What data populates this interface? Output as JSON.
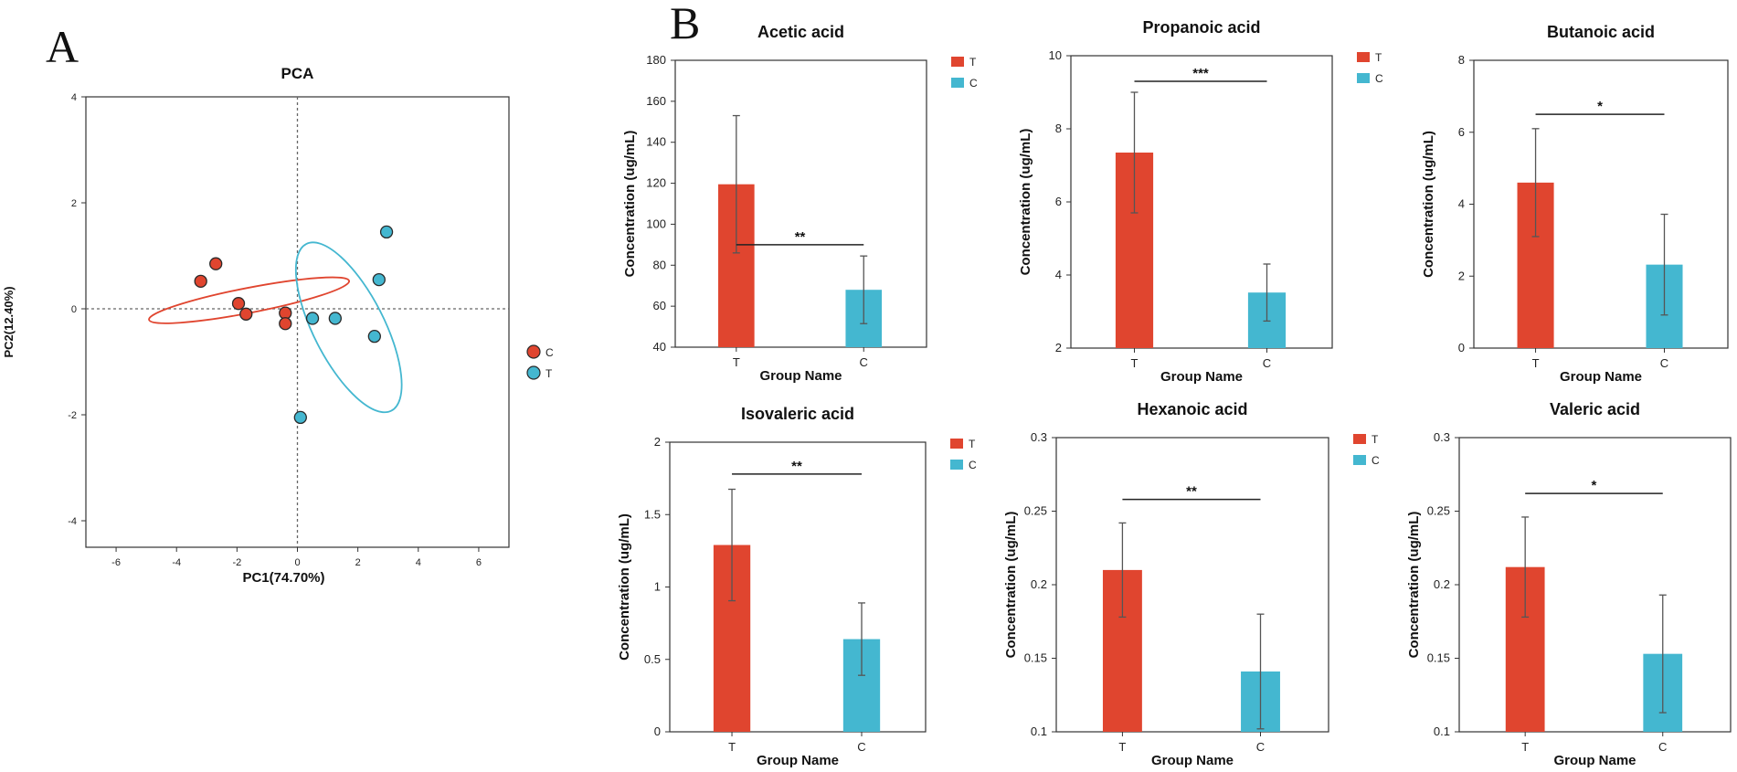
{
  "panel_labels": {
    "a": "A",
    "b": "B"
  },
  "colors": {
    "T": "#E0452F",
    "C": "#44B7D0"
  },
  "chart_data": [
    {
      "id": "pca",
      "type": "scatter",
      "title": "PCA",
      "xlabel": "PC1(74.70%)",
      "ylabel": "PC2(12.40%)",
      "xlim": [
        -7,
        7
      ],
      "ylim": [
        -4.5,
        4
      ],
      "xticks": [
        -6,
        -4,
        -2,
        0,
        2,
        4,
        6
      ],
      "yticks": [
        -4,
        -2,
        0,
        2,
        4
      ],
      "legend": [
        {
          "label": "C",
          "color": "#E0452F"
        },
        {
          "label": "T",
          "color": "#44B7D0"
        }
      ],
      "series": [
        {
          "name": "C",
          "color": "#E0452F",
          "points": [
            [
              -3.2,
              0.52
            ],
            [
              -2.7,
              0.85
            ],
            [
              -1.95,
              0.1
            ],
            [
              -1.7,
              -0.1
            ],
            [
              -0.4,
              -0.08
            ],
            [
              -0.4,
              -0.28
            ]
          ],
          "ellipse": {
            "cx": -1.6,
            "cy": 0.16,
            "rx": 4.9,
            "ry": 0.6,
            "angle": -11
          }
        },
        {
          "name": "T",
          "color": "#44B7D0",
          "points": [
            [
              2.95,
              1.45
            ],
            [
              2.7,
              0.55
            ],
            [
              0.5,
              -0.18
            ],
            [
              1.25,
              -0.18
            ],
            [
              2.55,
              -0.52
            ],
            [
              0.1,
              -2.05
            ]
          ],
          "ellipse": {
            "cx": 1.7,
            "cy": -0.35,
            "rx": 4.5,
            "ry": 1.7,
            "angle": 63
          }
        }
      ]
    },
    {
      "id": "acetic",
      "type": "bar",
      "title": "Acetic acid",
      "xlabel": "Group Name",
      "ylabel": "Concentration (ug/mL)",
      "categories": [
        "T",
        "C"
      ],
      "values": [
        119.5,
        68.0
      ],
      "errors": [
        33.5,
        16.5
      ],
      "ylim": [
        40,
        180
      ],
      "yticks": [
        "40",
        "60",
        "80",
        "100",
        "120",
        "140",
        "160",
        "180"
      ],
      "significance": "**",
      "sig_level": 90,
      "legend": [
        "T",
        "C"
      ]
    },
    {
      "id": "propanoic",
      "type": "bar",
      "title": "Propanoic acid",
      "xlabel": "Group Name",
      "ylabel": "Concentration (ug/mL)",
      "categories": [
        "T",
        "C"
      ],
      "values": [
        7.35,
        3.52
      ],
      "errors": [
        1.65,
        0.78
      ],
      "ylim": [
        2,
        10
      ],
      "yticks": [
        "2",
        "4",
        "6",
        "8",
        "10"
      ],
      "significance": "***",
      "sig_level": 9.3,
      "legend": [
        "T",
        "C"
      ]
    },
    {
      "id": "butanoic",
      "type": "bar",
      "title": "Butanoic acid",
      "xlabel": "Group Name",
      "ylabel": "Concentration (ug/mL)",
      "categories": [
        "T",
        "C"
      ],
      "values": [
        4.6,
        2.32
      ],
      "errors": [
        1.5,
        1.4
      ],
      "ylim": [
        0,
        8
      ],
      "yticks": [
        "0",
        "2",
        "4",
        "6",
        "8"
      ],
      "significance": "*",
      "sig_level": 6.5,
      "legend": [
        "T",
        "C"
      ]
    },
    {
      "id": "isovaleric",
      "type": "bar",
      "title": "Isovaleric acid",
      "xlabel": "Group Name",
      "ylabel": "Concentration (ug/mL)",
      "categories": [
        "T",
        "C"
      ],
      "values": [
        1.29,
        0.64
      ],
      "errors": [
        0.385,
        0.25
      ],
      "ylim": [
        0,
        2
      ],
      "yticks": [
        "0",
        "0.5",
        "1",
        "1.5",
        "2"
      ],
      "significance": "**",
      "sig_level": 1.78,
      "legend": [
        "T",
        "C"
      ]
    },
    {
      "id": "hexanoic",
      "type": "bar",
      "title": "Hexanoic acid",
      "xlabel": "Group Name",
      "ylabel": "Concentration (ug/mL)",
      "categories": [
        "T",
        "C"
      ],
      "values": [
        0.21,
        0.141
      ],
      "errors": [
        0.032,
        0.039
      ],
      "ylim": [
        0.1,
        0.3
      ],
      "yticks": [
        "0.1",
        "0.15",
        "0.2",
        "0.25",
        "0.3"
      ],
      "significance": "**",
      "sig_level": 0.258,
      "legend": [
        "T",
        "C"
      ]
    },
    {
      "id": "valeric",
      "type": "bar",
      "title": "Valeric acid",
      "xlabel": "Group Name",
      "ylabel": "Concentration (ug/mL)",
      "categories": [
        "T",
        "C"
      ],
      "values": [
        0.212,
        0.153
      ],
      "errors": [
        0.034,
        0.04
      ],
      "ylim": [
        0.1,
        0.3
      ],
      "yticks": [
        "0.1",
        "0.15",
        "0.2",
        "0.25",
        "0.3"
      ],
      "significance": "*",
      "sig_level": 0.262,
      "legend": [
        "T",
        "C"
      ]
    }
  ]
}
